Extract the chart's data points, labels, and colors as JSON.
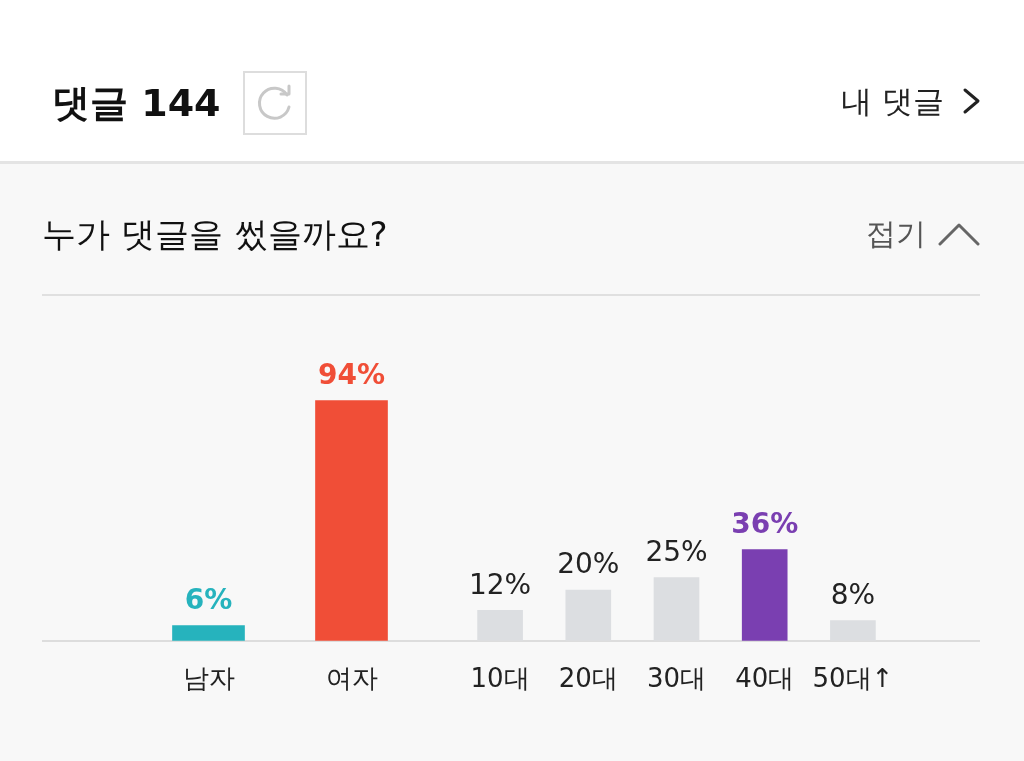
{
  "chart_data": [
    {
      "type": "other",
      "title": "댓글 144",
      "annotations": [
        "내 댓글"
      ]
    },
    {
      "type": "bar",
      "title": "누가 댓글을 썼을까요?",
      "annotations": [
        "접기"
      ],
      "categories": [
        "남자",
        "여자"
      ],
      "values": [
        6,
        94
      ],
      "colors": [
        "#26b3bd",
        "#f04e37"
      ],
      "value_labels": [
        "6%",
        "94%"
      ]
    },
    {
      "type": "bar",
      "categories": [
        "10대",
        "20대",
        "30대",
        "40대",
        "50대↑"
      ],
      "values": [
        12,
        20,
        25,
        36,
        8
      ],
      "colors": [
        "#dcdee1",
        "#dcdee1",
        "#dcdee1",
        "#7a3fb1",
        "#dcdee1"
      ],
      "value_labels": [
        "12%",
        "20%",
        "25%",
        "36%",
        "8%"
      ]
    }
  ]
}
